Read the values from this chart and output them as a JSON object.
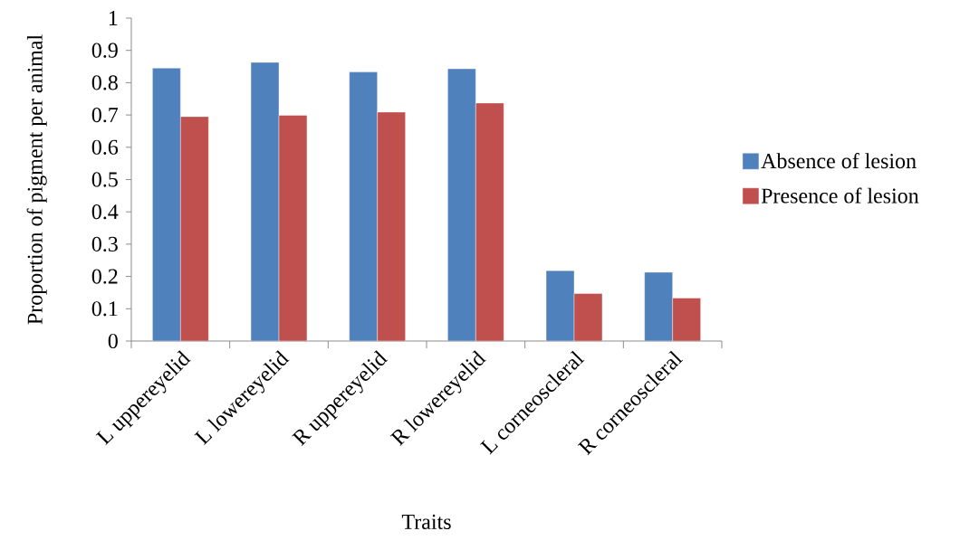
{
  "chart_data": {
    "type": "bar",
    "xlabel": "Traits",
    "ylabel": "Proportion of pigment per animal",
    "categories": [
      "L uppereyelid",
      "L lowereyelid",
      "R uppereyelid",
      "R lowereyelid",
      "L corneoscleral",
      "R corneoscleral"
    ],
    "series": [
      {
        "name": "Absence of lesion",
        "color": "#4f81bd",
        "values": [
          0.845,
          0.863,
          0.833,
          0.843,
          0.218,
          0.213
        ]
      },
      {
        "name": "Presence of lesion",
        "color": "#c0504d",
        "values": [
          0.695,
          0.699,
          0.709,
          0.737,
          0.147,
          0.133
        ]
      }
    ],
    "ylim": [
      0,
      1
    ],
    "yticks": [
      0,
      0.1,
      0.2,
      0.3,
      0.4,
      0.5,
      0.6,
      0.7,
      0.8,
      0.9,
      1
    ],
    "grid": false,
    "legend": "right"
  }
}
